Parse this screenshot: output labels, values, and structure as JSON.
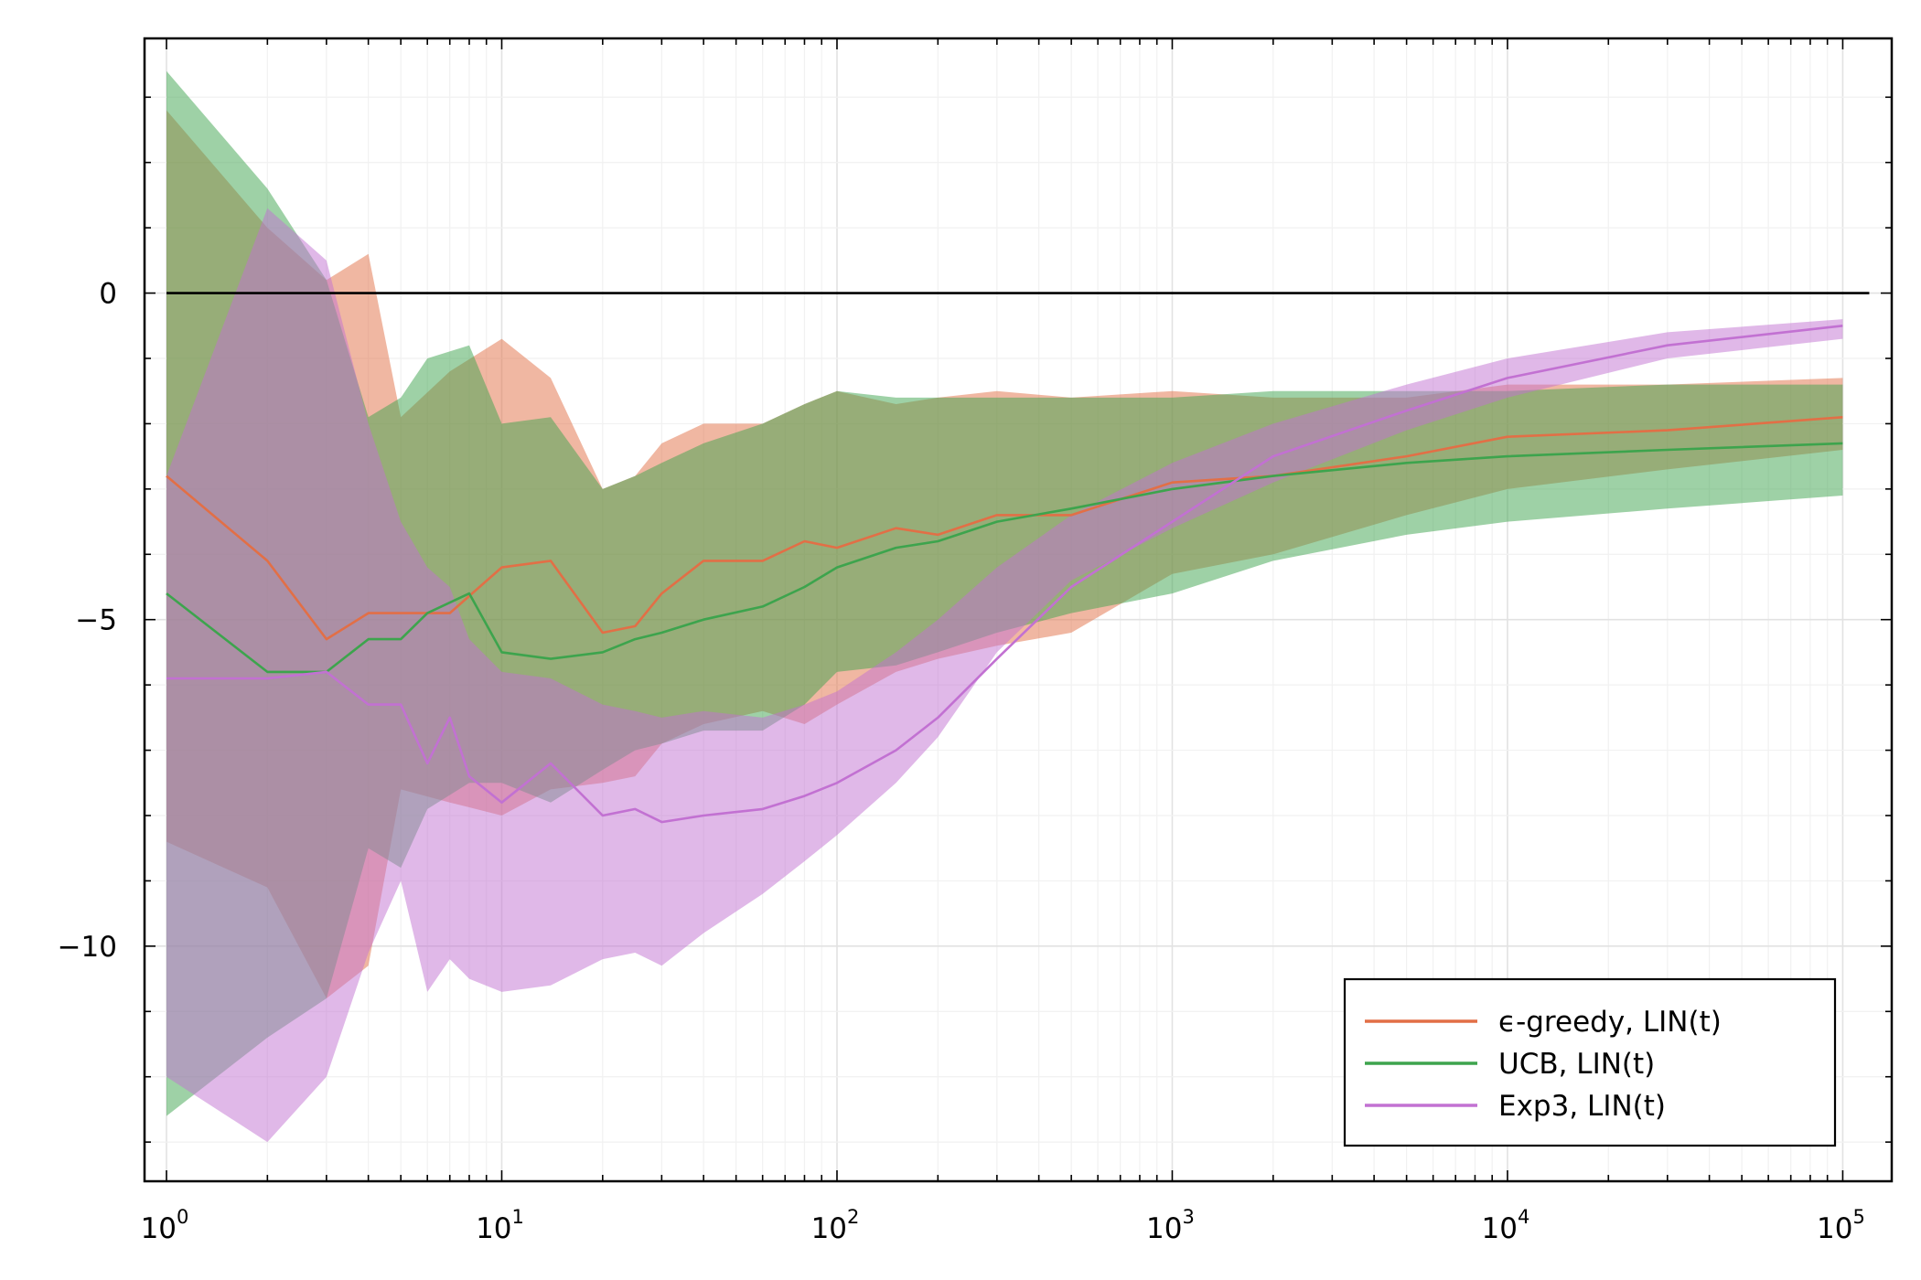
{
  "chart_data": {
    "type": "line",
    "xscale": "log",
    "xlim": [
      0.86,
      140000
    ],
    "ylim": [
      -13.6,
      3.9
    ],
    "x_ticks": [
      {
        "value": 1,
        "base": "10",
        "exp": "0"
      },
      {
        "value": 10,
        "base": "10",
        "exp": "1"
      },
      {
        "value": 100,
        "base": "10",
        "exp": "2"
      },
      {
        "value": 1000,
        "base": "10",
        "exp": "3"
      },
      {
        "value": 10000,
        "base": "10",
        "exp": "4"
      },
      {
        "value": 100000,
        "base": "10",
        "exp": "5"
      }
    ],
    "y_ticks": [
      {
        "value": 0,
        "label": "0"
      },
      {
        "value": -5,
        "label": "−5"
      },
      {
        "value": -10,
        "label": "−10"
      }
    ],
    "grid": true,
    "legend_position": "bottom-right",
    "reference_line": {
      "y": 0,
      "x_range": [
        1,
        120000
      ],
      "color": "#000000"
    },
    "series": [
      {
        "name": "ϵ-greedy, LIN(t)",
        "color": "#e26f46",
        "x": [
          1,
          2,
          3,
          4,
          5,
          7,
          10,
          14,
          20,
          25,
          30,
          40,
          60,
          80,
          100,
          150,
          200,
          300,
          500,
          1000,
          2000,
          5000,
          10000,
          30000,
          100000
        ],
        "y": [
          -2.8,
          -4.1,
          -5.3,
          -4.9,
          -4.9,
          -4.9,
          -4.2,
          -4.1,
          -5.2,
          -5.1,
          -4.6,
          -4.1,
          -4.1,
          -3.8,
          -3.9,
          -3.6,
          -3.7,
          -3.4,
          -3.4,
          -2.9,
          -2.8,
          -2.5,
          -2.2,
          -2.1,
          -1.9
        ],
        "upper": [
          2.8,
          1.0,
          0.2,
          0.6,
          -1.9,
          -1.2,
          -0.7,
          -1.3,
          -3.0,
          -2.8,
          -2.3,
          -2.0,
          -2.0,
          -1.7,
          -1.5,
          -1.7,
          -1.6,
          -1.5,
          -1.6,
          -1.5,
          -1.6,
          -1.6,
          -1.4,
          -1.4,
          -1.3
        ],
        "lower": [
          -8.4,
          -9.1,
          -10.8,
          -10.3,
          -7.6,
          -7.8,
          -8.0,
          -7.6,
          -7.5,
          -7.4,
          -6.9,
          -6.6,
          -6.4,
          -6.6,
          -6.3,
          -5.8,
          -5.6,
          -5.4,
          -5.2,
          -4.3,
          -4.0,
          -3.4,
          -3.0,
          -2.7,
          -2.4
        ]
      },
      {
        "name": "UCB, LIN(t)",
        "color": "#3da44d",
        "x": [
          1,
          2,
          3,
          4,
          5,
          6,
          8,
          10,
          14,
          20,
          25,
          30,
          40,
          60,
          80,
          100,
          150,
          200,
          300,
          500,
          1000,
          2000,
          5000,
          10000,
          30000,
          100000
        ],
        "y": [
          -4.6,
          -5.8,
          -5.8,
          -5.3,
          -5.3,
          -4.9,
          -4.6,
          -5.5,
          -5.6,
          -5.5,
          -5.3,
          -5.2,
          -5.0,
          -4.8,
          -4.5,
          -4.2,
          -3.9,
          -3.8,
          -3.5,
          -3.3,
          -3.0,
          -2.8,
          -2.6,
          -2.5,
          -2.4,
          -2.3
        ],
        "upper": [
          3.4,
          1.6,
          0.2,
          -1.9,
          -1.6,
          -1.0,
          -0.8,
          -2.0,
          -1.9,
          -3.0,
          -2.8,
          -2.6,
          -2.3,
          -2.0,
          -1.7,
          -1.5,
          -1.6,
          -1.6,
          -1.6,
          -1.6,
          -1.6,
          -1.5,
          -1.5,
          -1.5,
          -1.4,
          -1.4
        ],
        "lower": [
          -12.6,
          -11.4,
          -10.8,
          -8.5,
          -8.8,
          -7.9,
          -7.5,
          -7.5,
          -7.8,
          -7.3,
          -7.0,
          -6.9,
          -6.7,
          -6.7,
          -6.3,
          -5.8,
          -5.7,
          -5.5,
          -5.2,
          -4.9,
          -4.6,
          -4.1,
          -3.7,
          -3.5,
          -3.3,
          -3.1
        ]
      },
      {
        "name": "Exp3, LIN(t)",
        "color": "#c271d2",
        "x": [
          1,
          2,
          3,
          4,
          5,
          6,
          7,
          8,
          10,
          14,
          20,
          25,
          30,
          40,
          60,
          80,
          100,
          150,
          200,
          300,
          500,
          1000,
          2000,
          5000,
          10000,
          30000,
          100000
        ],
        "y": [
          -5.9,
          -5.9,
          -5.8,
          -6.3,
          -6.3,
          -7.2,
          -6.5,
          -7.4,
          -7.8,
          -7.2,
          -8.0,
          -7.9,
          -8.1,
          -8.0,
          -7.9,
          -7.7,
          -7.5,
          -7.0,
          -6.5,
          -5.6,
          -4.5,
          -3.5,
          -2.5,
          -1.8,
          -1.3,
          -0.8,
          -0.5
        ],
        "upper": [
          -2.8,
          1.3,
          0.5,
          -2.0,
          -3.5,
          -4.2,
          -4.5,
          -5.3,
          -5.8,
          -5.9,
          -6.3,
          -6.4,
          -6.5,
          -6.4,
          -6.5,
          -6.3,
          -6.1,
          -5.5,
          -5.0,
          -4.2,
          -3.4,
          -2.6,
          -2.0,
          -1.4,
          -1.0,
          -0.6,
          -0.4
        ],
        "lower": [
          -12.0,
          -13.0,
          -12.0,
          -10.1,
          -9.0,
          -10.7,
          -10.2,
          -10.5,
          -10.7,
          -10.6,
          -10.2,
          -10.1,
          -10.3,
          -9.8,
          -9.2,
          -8.7,
          -8.3,
          -7.5,
          -6.8,
          -5.5,
          -4.4,
          -3.6,
          -2.9,
          -2.1,
          -1.6,
          -1.0,
          -0.7
        ]
      }
    ]
  }
}
